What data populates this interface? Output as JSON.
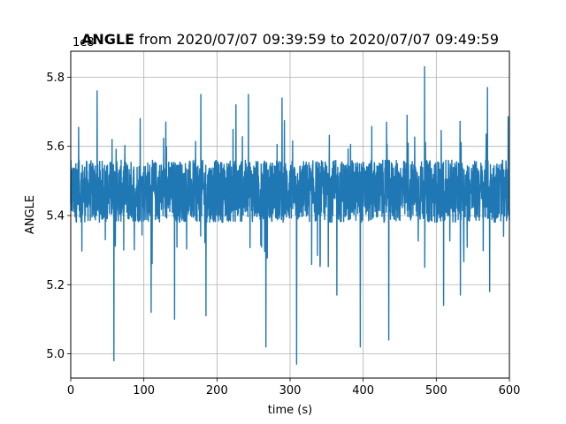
{
  "chart_data": {
    "type": "line",
    "title_bold": "ANGLE",
    "title_rest": " from 2020/07/07 09:39:59 to 2020/07/07 09:49:59",
    "xlabel": "time (s)",
    "ylabel": "ANGLE",
    "y_offset_text": "1e8",
    "xlim": [
      0,
      600
    ],
    "ylim": [
      4.93,
      5.875
    ],
    "x_ticks": [
      0,
      100,
      200,
      300,
      400,
      500,
      600
    ],
    "y_ticks": [
      5.0,
      5.2,
      5.4,
      5.6,
      5.8
    ],
    "y_tick_labels": [
      "5.0",
      "5.2",
      "5.4",
      "5.6",
      "5.8"
    ],
    "grid": true,
    "color": "#1f77b4",
    "series": [
      {
        "baseline": 5.47,
        "band": [
          5.38,
          5.56
        ],
        "spikes": [
          {
            "x": 36,
            "y": 5.76
          },
          {
            "x": 59,
            "y": 4.98
          },
          {
            "x": 95,
            "y": 5.68
          },
          {
            "x": 110,
            "y": 5.12
          },
          {
            "x": 130,
            "y": 5.67
          },
          {
            "x": 142,
            "y": 5.1
          },
          {
            "x": 178,
            "y": 5.75
          },
          {
            "x": 185,
            "y": 5.11
          },
          {
            "x": 226,
            "y": 5.72
          },
          {
            "x": 243,
            "y": 5.75
          },
          {
            "x": 267,
            "y": 5.02
          },
          {
            "x": 289,
            "y": 5.74
          },
          {
            "x": 309,
            "y": 4.97
          },
          {
            "x": 364,
            "y": 5.17
          },
          {
            "x": 396,
            "y": 5.02
          },
          {
            "x": 432,
            "y": 5.67
          },
          {
            "x": 435,
            "y": 5.04
          },
          {
            "x": 460,
            "y": 5.69
          },
          {
            "x": 484,
            "y": 5.83
          },
          {
            "x": 510,
            "y": 5.14
          },
          {
            "x": 533,
            "y": 5.17
          },
          {
            "x": 570,
            "y": 5.77
          },
          {
            "x": 573,
            "y": 5.18
          }
        ]
      }
    ]
  }
}
